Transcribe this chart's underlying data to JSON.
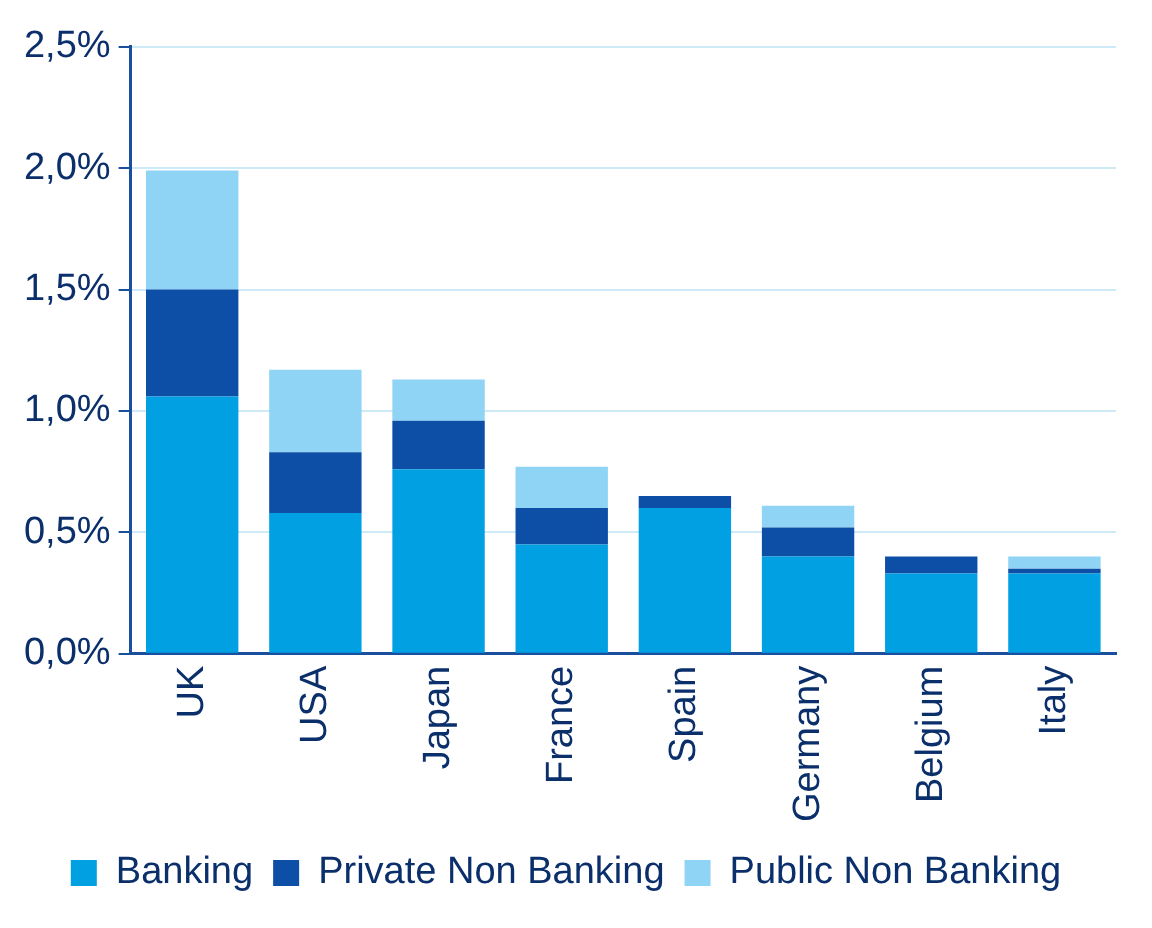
{
  "chart_data": {
    "type": "bar",
    "stacked": true,
    "categories": [
      "UK",
      "USA",
      "Japan",
      "France",
      "Spain",
      "Germany",
      "Belgium",
      "Italy"
    ],
    "series": [
      {
        "name": "Banking",
        "color": "#00a0e3",
        "values": [
          1.06,
          0.58,
          0.76,
          0.45,
          0.6,
          0.4,
          0.33,
          0.33
        ]
      },
      {
        "name": "Private Non Banking",
        "color": "#0d4ea6",
        "values": [
          0.44,
          0.25,
          0.2,
          0.15,
          0.05,
          0.12,
          0.07,
          0.02
        ]
      },
      {
        "name": "Public Non Banking",
        "color": "#8fd3f5",
        "values": [
          0.49,
          0.34,
          0.17,
          0.17,
          0,
          0.09,
          0,
          0.05
        ]
      }
    ],
    "ylim": [
      0,
      2.5
    ],
    "yticks": [
      {
        "value": 0,
        "label": "0,0%"
      },
      {
        "value": 0.5,
        "label": "0,5%"
      },
      {
        "value": 1,
        "label": "1,0%"
      },
      {
        "value": 1.5,
        "label": "1,5%"
      },
      {
        "value": 2,
        "label": "2,0%"
      },
      {
        "value": 2.5,
        "label": "2,5%"
      }
    ],
    "grid": "y",
    "legend": "bottom"
  }
}
